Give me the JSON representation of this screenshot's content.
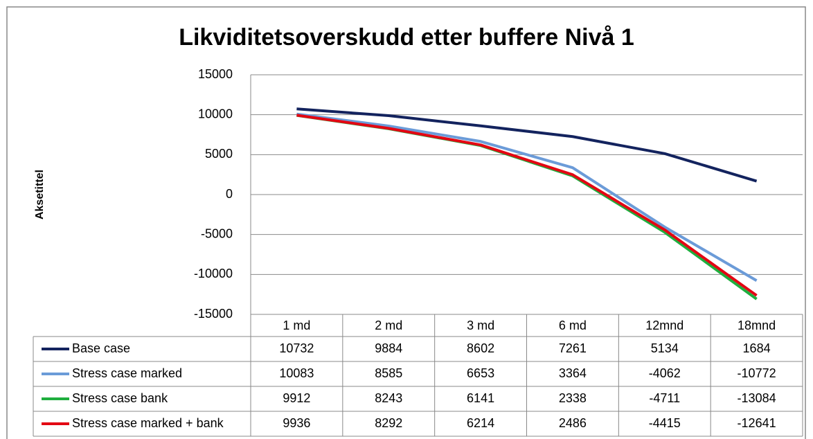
{
  "chart_data": {
    "type": "line",
    "title": "Likviditetsoverskudd etter buffere Nivå 1",
    "y_label": "Aksetittel",
    "categories": [
      "1 md",
      "2 md",
      "3 md",
      "6 md",
      "12mnd",
      "18mnd"
    ],
    "series": [
      {
        "name": "Base case",
        "color": "#13235e",
        "values": [
          10732,
          9884,
          8602,
          7261,
          5134,
          1684
        ]
      },
      {
        "name": "Stress case marked",
        "color": "#6b9bd8",
        "values": [
          10083,
          8585,
          6653,
          3364,
          -4062,
          -10772
        ]
      },
      {
        "name": "Stress case bank",
        "color": "#1fae3e",
        "values": [
          9912,
          8243,
          6141,
          2338,
          -4711,
          -13084
        ]
      },
      {
        "name": "Stress case marked + bank",
        "color": "#e30613",
        "values": [
          9936,
          8292,
          6214,
          2486,
          -4415,
          -12641
        ]
      }
    ],
    "ylim": [
      -15000,
      15000
    ],
    "yticks": [
      15000,
      10000,
      5000,
      0,
      -5000,
      -10000,
      -15000
    ],
    "grid": true,
    "data_table": true
  }
}
